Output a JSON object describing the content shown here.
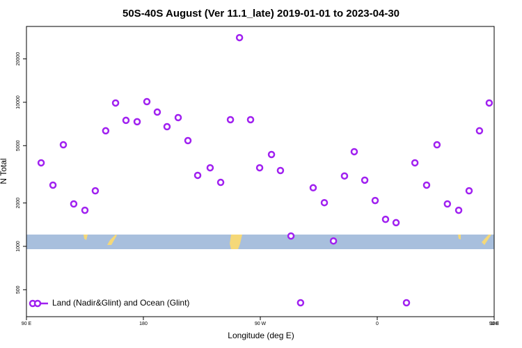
{
  "chart_data": {
    "type": "scatter",
    "title": "50S-40S August (Ver 11.1_late)   2019-01-01 to 2023-04-30",
    "x_label": "Longitude (deg E)",
    "y_label": "N Total",
    "xlim": [
      90,
      450
    ],
    "xticks": [
      {
        "value": 90,
        "label": "90 E"
      },
      {
        "value": 180,
        "label": "180"
      },
      {
        "value": 270,
        "label": "90 W"
      },
      {
        "value": 360,
        "label": "0"
      },
      {
        "value": 450,
        "label": "90 E"
      },
      {
        "value": 540,
        "label": "180"
      }
    ],
    "ylim": [
      325,
      33600
    ],
    "ylog": true,
    "yticks": [
      500,
      1000,
      2000,
      5000,
      10000,
      20000
    ],
    "legend": "bottom-left",
    "series": [
      {
        "name": "Land (Nadir&Glint) and Ocean (Glint)",
        "color": "#a020f0",
        "x": [
          101.3,
          110.4,
          118.4,
          126.4,
          135.0,
          143.0,
          151.0,
          158.6,
          166.6,
          175.2,
          182.7,
          190.7,
          198.2,
          206.8,
          214.3,
          221.8,
          231.4,
          239.5,
          247.0,
          254.0,
          262.5,
          269.5,
          278.6,
          285.5,
          293.6,
          301.0,
          310.7,
          319.3,
          326.3,
          334.8,
          342.3,
          350.4,
          358.4,
          366.4,
          374.5,
          382.5,
          389.0,
          398.0,
          406.0,
          414.0,
          422.7,
          430.7,
          438.7,
          446.2
        ],
        "values": [
          3800,
          2660,
          5070,
          1970,
          1780,
          2430,
          6340,
          9890,
          7490,
          7330,
          10100,
          8550,
          6770,
          7830,
          5420,
          3110,
          3510,
          2780,
          7570,
          28100,
          7570,
          3510,
          4340,
          3360,
          1180,
          406,
          2550,
          2010,
          1090,
          3080,
          4540,
          2880,
          2080,
          1540,
          1460,
          406,
          3800,
          2660,
          5070,
          1970,
          1780,
          2430,
          6340,
          9890
        ]
      }
    ]
  }
}
